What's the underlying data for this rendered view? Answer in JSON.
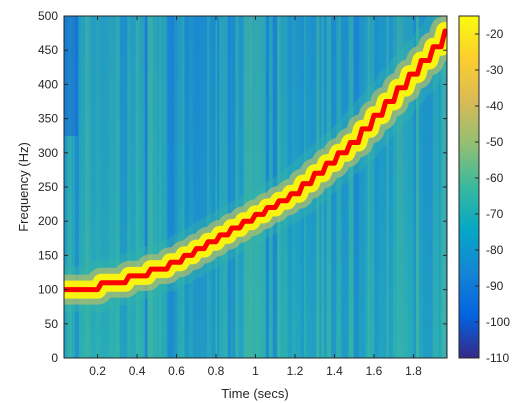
{
  "chart_data": {
    "type": "heatmap",
    "title": "",
    "xlabel": "Time (secs)",
    "ylabel": "Frequency (Hz)",
    "xlim": [
      0.03,
      1.97
    ],
    "ylim": [
      0,
      500
    ],
    "xticks": [
      0.2,
      0.4,
      0.6,
      0.8,
      1,
      1.2,
      1.4,
      1.6,
      1.8
    ],
    "xtick_labels": [
      "0.2",
      "0.4",
      "0.6",
      "0.8",
      "1",
      "1.2",
      "1.4",
      "1.6",
      "1.8"
    ],
    "yticks": [
      0,
      50,
      100,
      150,
      200,
      250,
      300,
      350,
      400,
      450,
      500
    ],
    "ytick_labels": [
      "0",
      "50",
      "100",
      "150",
      "200",
      "250",
      "300",
      "350",
      "400",
      "450",
      "500"
    ],
    "colormap": "parula",
    "colorbar": {
      "range": [
        -110,
        -15
      ],
      "ticks": [
        -20,
        -30,
        -40,
        -50,
        -60,
        -70,
        -80,
        -90,
        -100,
        -110
      ],
      "tick_labels": [
        "-20",
        "-30",
        "-40",
        "-50",
        "-60",
        "-70",
        "-80",
        "-90",
        "-100",
        "-110"
      ]
    },
    "ridge": {
      "description": "instantaneous frequency estimate",
      "color": "#ff0000",
      "x": [
        0.03,
        0.2,
        0.22,
        0.34,
        0.36,
        0.45,
        0.47,
        0.55,
        0.57,
        0.62,
        0.64,
        0.68,
        0.7,
        0.74,
        0.76,
        0.8,
        0.82,
        0.86,
        0.88,
        0.92,
        0.94,
        0.98,
        1.0,
        1.04,
        1.06,
        1.1,
        1.12,
        1.16,
        1.18,
        1.22,
        1.24,
        1.28,
        1.3,
        1.34,
        1.36,
        1.4,
        1.42,
        1.46,
        1.48,
        1.52,
        1.54,
        1.58,
        1.6,
        1.64,
        1.66,
        1.7,
        1.72,
        1.76,
        1.78,
        1.82,
        1.84,
        1.88,
        1.9,
        1.94,
        1.96
      ],
      "y": [
        100,
        100,
        110,
        110,
        120,
        120,
        130,
        130,
        140,
        140,
        150,
        150,
        160,
        160,
        170,
        170,
        180,
        180,
        190,
        190,
        200,
        200,
        210,
        210,
        220,
        220,
        230,
        230,
        240,
        240,
        255,
        255,
        270,
        270,
        285,
        285,
        300,
        300,
        315,
        315,
        335,
        335,
        355,
        355,
        375,
        375,
        395,
        395,
        415,
        415,
        435,
        435,
        455,
        455,
        478
      ]
    }
  }
}
